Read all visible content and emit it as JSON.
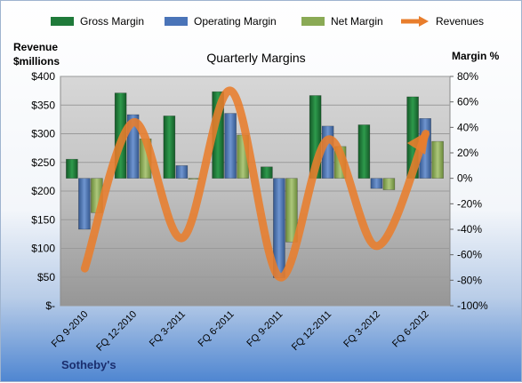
{
  "chart_data": {
    "type": "bar",
    "title": "Quarterly Margins",
    "footer_label": "Sotheby's",
    "left_axis": {
      "label_line1": "Revenue",
      "label_line2": "$millions",
      "range": [
        0,
        400
      ],
      "ticks": [
        "$-",
        "$50",
        "$100",
        "$150",
        "$200",
        "$250",
        "$300",
        "$350",
        "$400"
      ]
    },
    "right_axis": {
      "label": "Margin %",
      "range": [
        -100,
        80
      ],
      "ticks": [
        "-100%",
        "-80%",
        "-60%",
        "-40%",
        "-20%",
        "0%",
        "20%",
        "40%",
        "60%",
        "80%"
      ]
    },
    "categories": [
      "FQ 9-2010",
      "FQ 12-2010",
      "FQ 3-2011",
      "FQ 6-2011",
      "FQ 9-2011",
      "FQ 12-2011",
      "FQ 3-2012",
      "FQ 6-2012"
    ],
    "bar_series": [
      {
        "name": "Gross Margin",
        "color": "#1f7a3a",
        "axis": "right",
        "values": [
          15,
          67,
          49,
          68,
          9,
          65,
          42,
          64
        ]
      },
      {
        "name": "Operating Margin",
        "color": "#4a74b8",
        "axis": "right",
        "values": [
          -40,
          50,
          10,
          51,
          -78,
          41,
          -8,
          47
        ]
      },
      {
        "name": "Net Margin",
        "color": "#8aaa55",
        "axis": "right",
        "values": [
          -27,
          31,
          0,
          34,
          -50,
          25,
          -9,
          29
        ]
      }
    ],
    "line_series": {
      "name": "Revenues",
      "color": "#e87d2c",
      "axis": "left",
      "values": [
        65,
        320,
        118,
        375,
        50,
        290,
        104,
        300
      ]
    },
    "grid": true,
    "legend_position": "top"
  }
}
